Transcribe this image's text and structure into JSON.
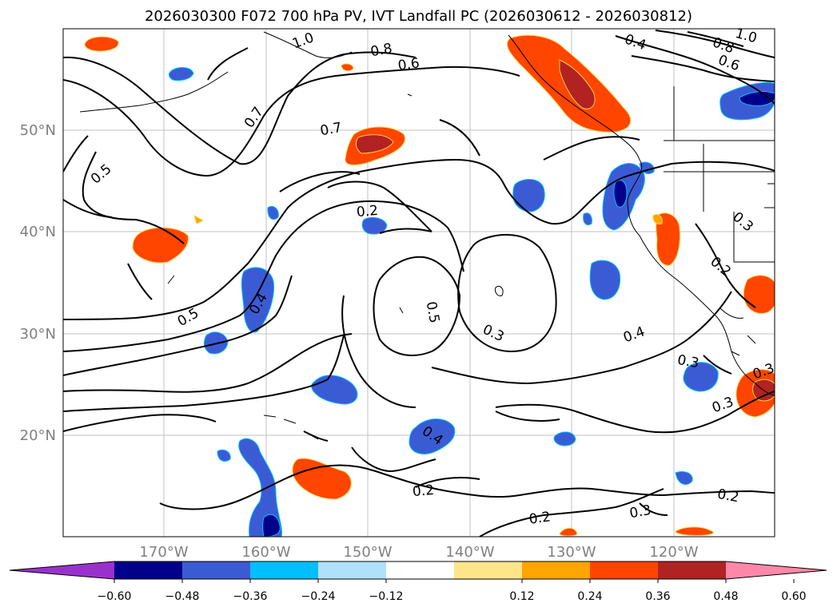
{
  "title": "2026030300 F072 700 hPa PV, IVT Landfall PC (2026030612 - 2026030812)",
  "axes": {
    "lat_labels": [
      "50°N",
      "40°N",
      "30°N",
      "20°N"
    ],
    "lon_labels": [
      "170°W",
      "160°W",
      "150°W",
      "140°W",
      "130°W",
      "120°W"
    ]
  },
  "contour_labels": [
    "1.0",
    "0.8",
    "0.6",
    "0.4",
    "0.8",
    "0.6",
    "1.0",
    "0.7",
    "0.7",
    "0.5",
    "0.5",
    "0.2",
    "0.4",
    "0.5",
    "0.3",
    "0.4",
    "0.3",
    "0.3",
    "0.2",
    "0.3",
    "0.4",
    "0.2",
    "0.2",
    "0.3",
    "0.2",
    "0.3"
  ],
  "colorbar": {
    "colors": [
      "#9932cc",
      "#00008b",
      "#3b5bd5",
      "#00bfff",
      "#afe1fb",
      "#ffffff",
      "#fde68a",
      "#ffa500",
      "#ff4500",
      "#b22222",
      "#ff88aa"
    ],
    "ticks": [
      "−0.60",
      "−0.48",
      "−0.36",
      "−0.24",
      "−0.12",
      "0.12",
      "0.24",
      "0.36",
      "0.48",
      "0.60"
    ]
  }
}
